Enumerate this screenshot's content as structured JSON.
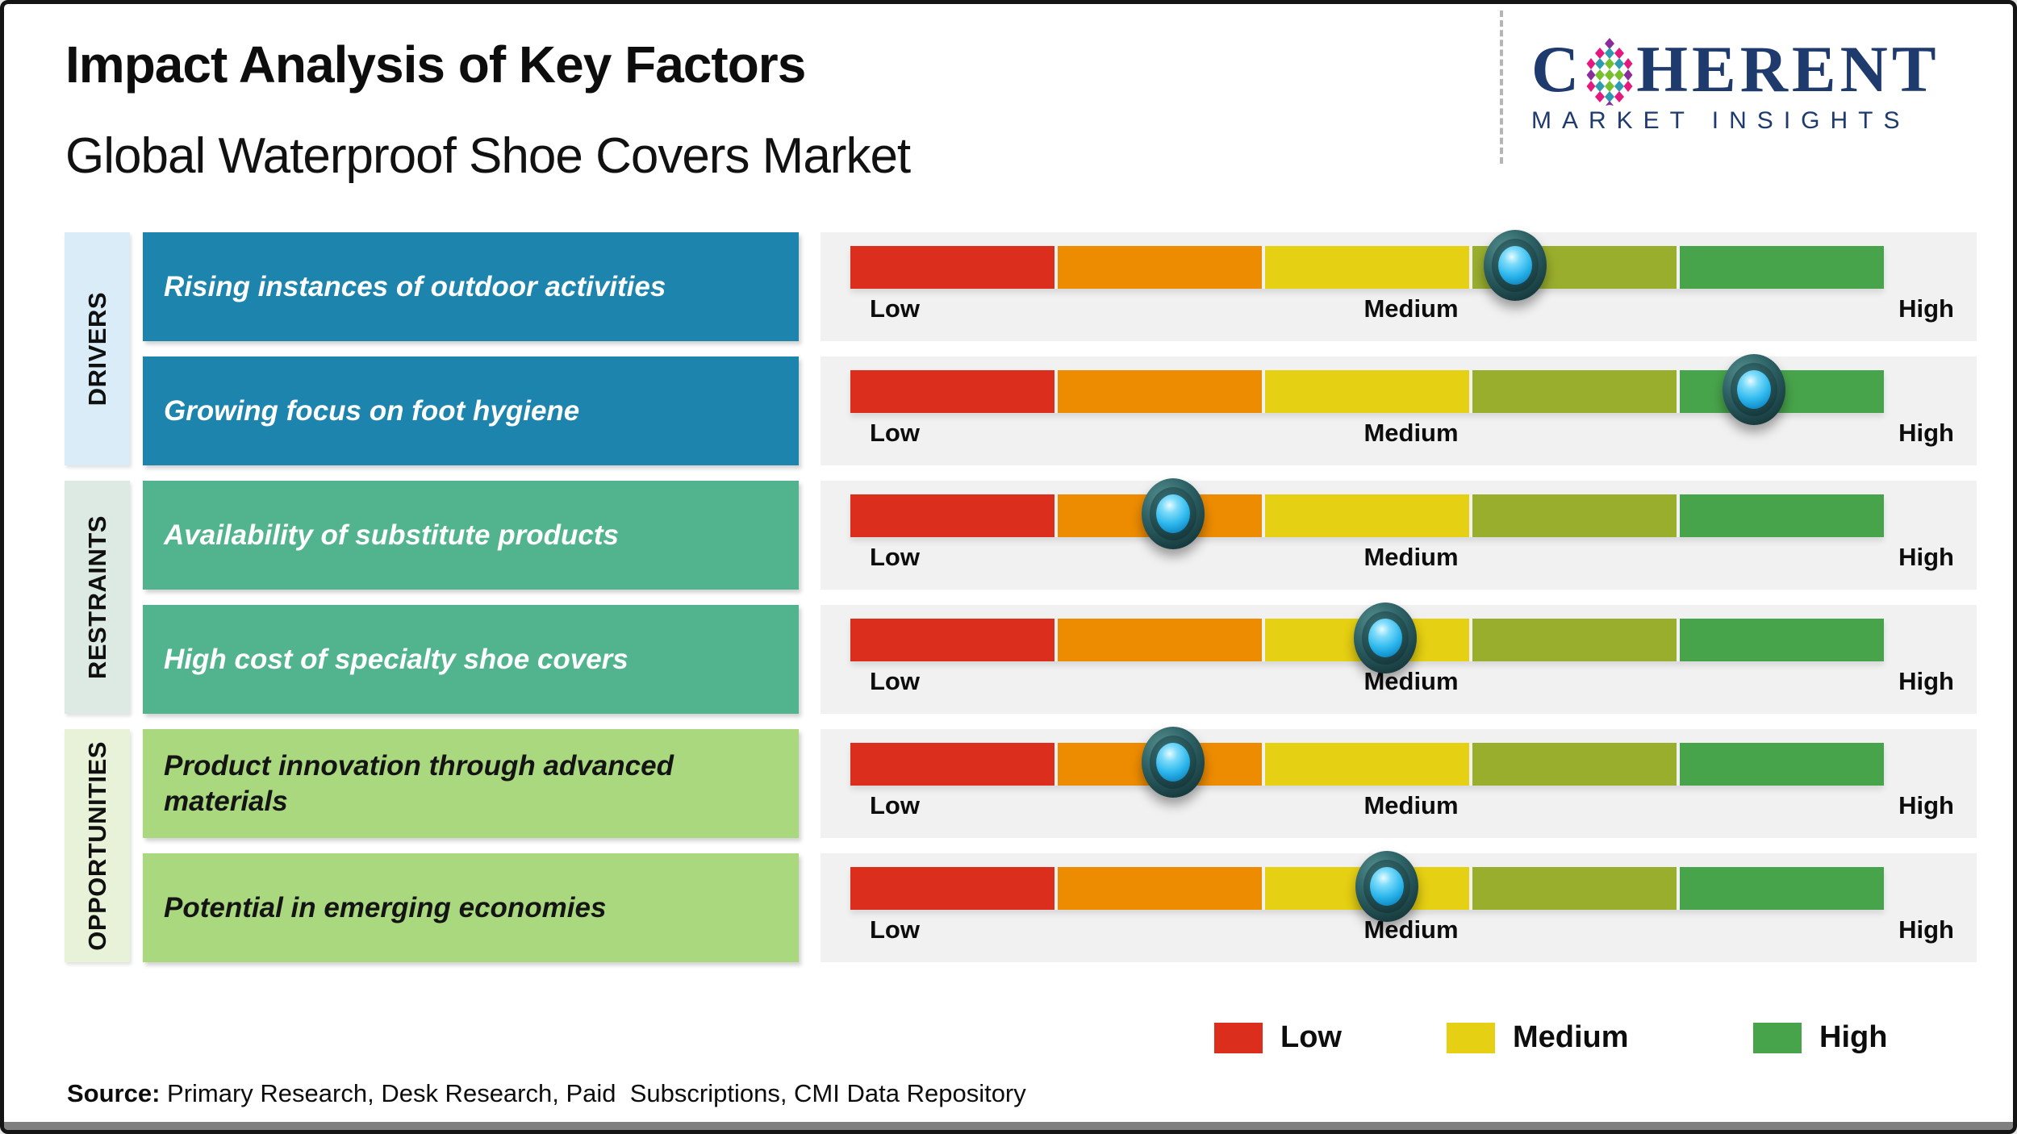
{
  "header": {
    "title": "Impact Analysis of Key Factors",
    "subtitle": "Global Waterproof Shoe Covers Market",
    "logo": {
      "brand_pre": "C",
      "brand_post": "HERENT",
      "tagline": "MARKET INSIGHTS",
      "color": "#1f3a6d"
    }
  },
  "chart_data": {
    "type": "scatter",
    "title": "Impact Analysis of Key Factors - Global Waterproof Shoe Covers Market",
    "scale": {
      "min_label": "Low",
      "mid_label": "Medium",
      "max_label": "High",
      "range": [
        0,
        100
      ]
    },
    "segment_colors": [
      "#dc2e1c",
      "#ee8c01",
      "#e6d013",
      "#9aae2e",
      "#48a44b"
    ],
    "groups": [
      {
        "name": "DRIVERS",
        "band_color": "#d9ecf7",
        "row_color": "#1d84ad",
        "text_color": "#ffffff",
        "factors": [
          {
            "label": "Rising instances of outdoor activities",
            "impact_pct": 64.4,
            "impact_level": "medium-high"
          },
          {
            "label": "Growing focus on foot hygiene",
            "impact_pct": 87.5,
            "impact_level": "high"
          }
        ]
      },
      {
        "name": "RESTRAINTS",
        "band_color": "#dceae3",
        "row_color": "#52b48e",
        "text_color": "#ffffff",
        "factors": [
          {
            "label": "Availability of substitute products",
            "impact_pct": 31.3,
            "impact_level": "low-medium"
          },
          {
            "label": "High cost of specialty shoe covers",
            "impact_pct": 51.8,
            "impact_level": "medium"
          }
        ]
      },
      {
        "name": "OPPORTUNITIES",
        "band_color": "#e7f2d9",
        "row_color": "#a9d87e",
        "text_color": "#141414",
        "factors": [
          {
            "label": "Product innovation through advanced materials",
            "impact_pct": 31.3,
            "impact_level": "low-medium"
          },
          {
            "label": "Potential in emerging economies",
            "impact_pct": 52.0,
            "impact_level": "medium"
          }
        ]
      }
    ],
    "legend": [
      {
        "label": "Low",
        "color": "#dc2e1c"
      },
      {
        "label": "Medium",
        "color": "#e6d013"
      },
      {
        "label": "High",
        "color": "#48a44b"
      }
    ],
    "legend_position": "bottom-right"
  },
  "footer": {
    "source_label": "Source:",
    "source_text": " Primary Research, Desk Research, Paid  Subscriptions, CMI Data Repository"
  }
}
